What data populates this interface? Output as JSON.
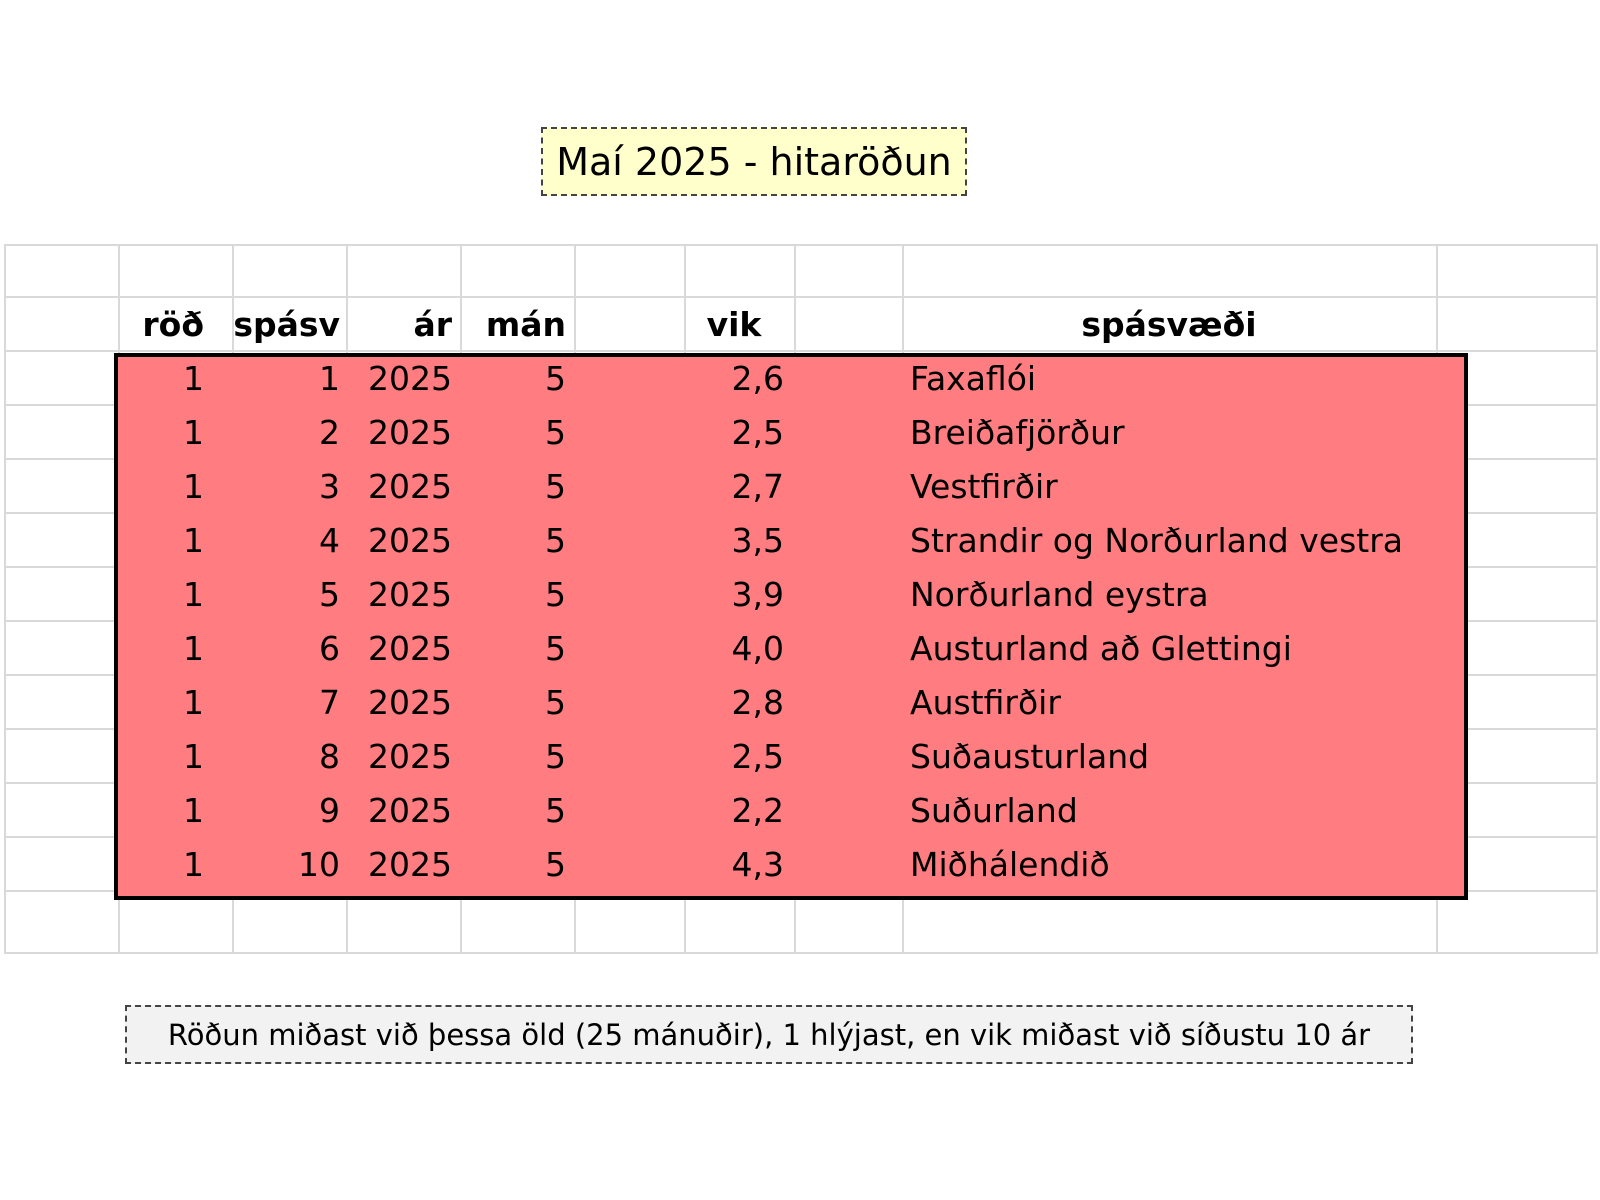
{
  "title": "Maí 2025 - hitaröðun",
  "table": {
    "headers": [
      "röð",
      "spásv",
      "ár",
      "mán",
      "vik",
      "spásvæði"
    ],
    "rows": [
      [
        "1",
        "1",
        "2025",
        "5",
        "2,6",
        "Faxaflói"
      ],
      [
        "1",
        "2",
        "2025",
        "5",
        "2,5",
        "Breiðafjörður"
      ],
      [
        "1",
        "3",
        "2025",
        "5",
        "2,7",
        "Vestfirðir"
      ],
      [
        "1",
        "4",
        "2025",
        "5",
        "3,5",
        "Strandir og Norðurland vestra"
      ],
      [
        "1",
        "5",
        "2025",
        "5",
        "3,9",
        "Norðurland eystra"
      ],
      [
        "1",
        "6",
        "2025",
        "5",
        "4,0",
        "Austurland að Glettingi"
      ],
      [
        "1",
        "7",
        "2025",
        "5",
        "2,8",
        "Austfirðir"
      ],
      [
        "1",
        "8",
        "2025",
        "5",
        "2,5",
        "Suðausturland"
      ],
      [
        "1",
        "9",
        "2025",
        "5",
        "2,2",
        "Suðurland"
      ],
      [
        "1",
        "10",
        "2025",
        "5",
        "4,3",
        "Miðhálendið"
      ]
    ],
    "highlight_color": "#ff7c80"
  },
  "note": "Röðun miðast við þessa öld (25 mánuðir), 1 hlýjast, en vik miðast við síðustu 10 ár"
}
